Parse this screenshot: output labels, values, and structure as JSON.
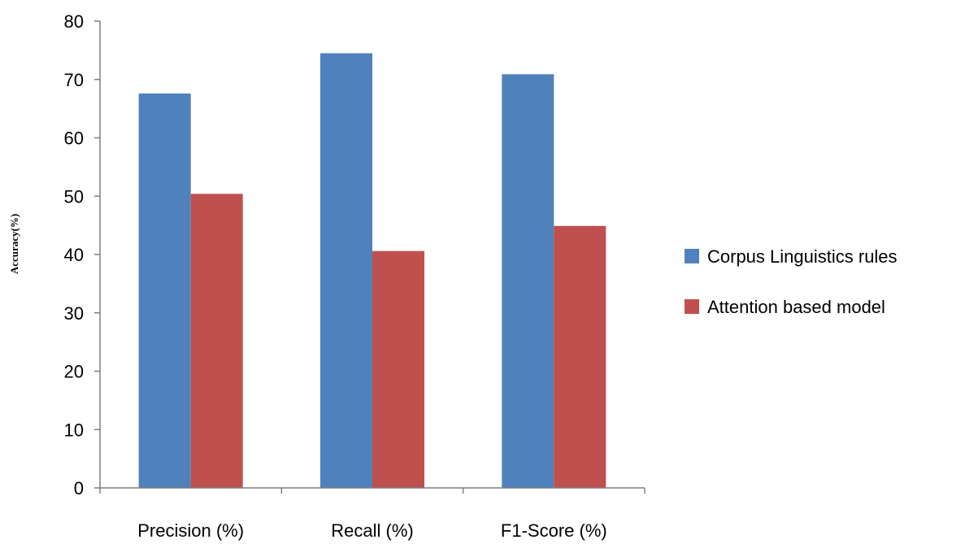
{
  "chart_data": {
    "type": "bar",
    "title": "",
    "xlabel": "",
    "ylabel": "Accuracy(%)",
    "ylim": [
      0,
      80
    ],
    "yticks": [
      0,
      10,
      20,
      30,
      40,
      50,
      60,
      70,
      80
    ],
    "grid": false,
    "legend_position": "right",
    "categories": [
      "Precision (%)",
      "Recall (%)",
      "F1-Score (%)"
    ],
    "series": [
      {
        "name": "Corpus Linguistics rules",
        "color": "#4F81BD",
        "values": [
          67.6,
          74.5,
          70.9
        ]
      },
      {
        "name": "Attention based model",
        "color": "#C0504D",
        "values": [
          50.4,
          40.6,
          44.9
        ]
      }
    ]
  }
}
